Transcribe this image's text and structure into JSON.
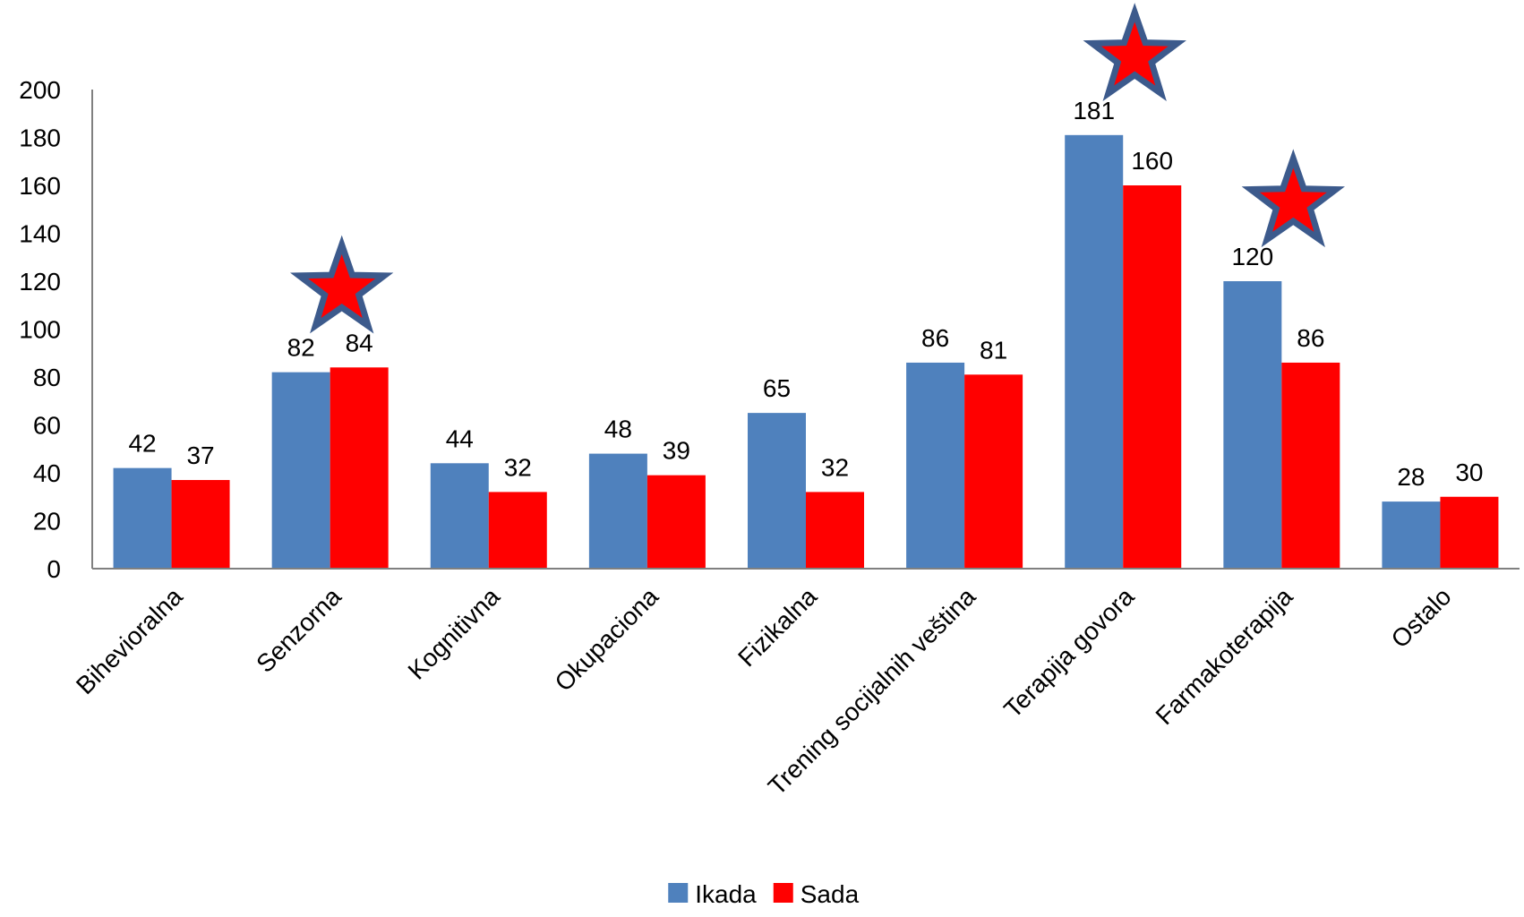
{
  "chart_data": {
    "type": "bar",
    "categories": [
      "Bihevioralna",
      "Senzorna",
      "Kognitivna",
      "Okupaciona",
      "Fizikalna",
      "Trening socijalnih veština",
      "Terapija govora",
      "Farmakoterapija",
      "Ostalo"
    ],
    "series": [
      {
        "name": "Ikada",
        "color": "#4F81BD",
        "values": [
          42,
          82,
          44,
          48,
          65,
          86,
          181,
          120,
          28
        ]
      },
      {
        "name": "Sada",
        "color": "#FF0000",
        "values": [
          37,
          84,
          32,
          39,
          32,
          81,
          160,
          86,
          30
        ]
      }
    ],
    "ylim": [
      0,
      200
    ],
    "yticks": [
      0,
      20,
      40,
      60,
      80,
      100,
      120,
      140,
      160,
      180,
      200
    ],
    "grid": false,
    "legend_position": "bottom",
    "star_markers": {
      "categories": [
        "Senzorna",
        "Terapija govora",
        "Farmakoterapija"
      ],
      "fill": "#FF0000",
      "outline": "#3C5A8C"
    }
  }
}
